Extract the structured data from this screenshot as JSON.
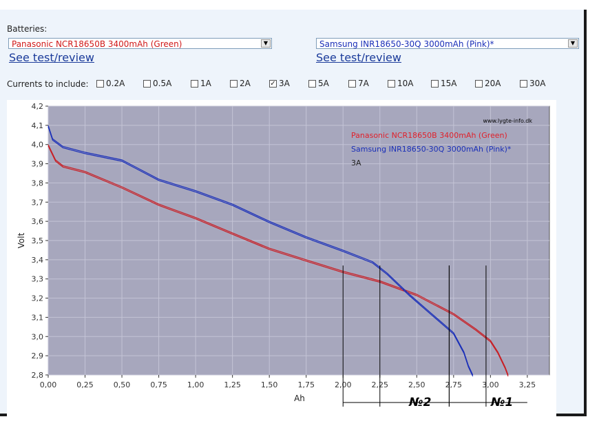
{
  "batteries_label": "Batteries:",
  "battery_left": {
    "selected": "Panasonic NCR18650B 3400mAh (Green)",
    "link": "See test/review"
  },
  "battery_right": {
    "selected": "Samsung INR18650-30Q 3000mAh (Pink)*",
    "link": "See test/review"
  },
  "currents_label": "Currents to include:",
  "currents": [
    {
      "label": "0.2A",
      "checked": false
    },
    {
      "label": "0.5A",
      "checked": false
    },
    {
      "label": "1A",
      "checked": false
    },
    {
      "label": "2A",
      "checked": false
    },
    {
      "label": "3A",
      "checked": true
    },
    {
      "label": "5A",
      "checked": false
    },
    {
      "label": "7A",
      "checked": false
    },
    {
      "label": "10A",
      "checked": false
    },
    {
      "label": "15A",
      "checked": false
    },
    {
      "label": "20A",
      "checked": false
    },
    {
      "label": "30A",
      "checked": false
    }
  ],
  "chart_data": {
    "type": "line",
    "xlabel": "Ah",
    "ylabel": "Volt",
    "xlim": [
      0,
      3.4
    ],
    "ylim": [
      2.8,
      4.2
    ],
    "x_ticks": [
      "0,00",
      "0,25",
      "0,50",
      "0,75",
      "1,00",
      "1,25",
      "1,50",
      "1,75",
      "2,00",
      "2,25",
      "2,50",
      "2,75",
      "3,00",
      "3,25"
    ],
    "y_ticks": [
      "2,8",
      "2,9",
      "3,0",
      "3,1",
      "3,2",
      "3,3",
      "3,4",
      "3,5",
      "3,6",
      "3,7",
      "3,8",
      "3,9",
      "4,0",
      "4,1",
      "4,2"
    ],
    "watermark": "www.lygte-info.dk",
    "legend": [
      {
        "name": "Panasonic NCR18650B 3400mAh (Green)",
        "color": "#e0202a"
      },
      {
        "name": "Samsung INR18650-30Q 3000mAh (Pink)*",
        "color": "#1a2fb8"
      },
      {
        "name": "3A",
        "color": "#222222"
      }
    ],
    "series": [
      {
        "name": "Panasonic NCR18650B 3400mAh (Green)",
        "color": "#c81e24",
        "points": [
          [
            0,
            4.0
          ],
          [
            0.05,
            3.92
          ],
          [
            0.1,
            3.89
          ],
          [
            0.25,
            3.86
          ],
          [
            0.5,
            3.78
          ],
          [
            0.75,
            3.69
          ],
          [
            1.0,
            3.62
          ],
          [
            1.25,
            3.54
          ],
          [
            1.5,
            3.46
          ],
          [
            1.75,
            3.4
          ],
          [
            2.0,
            3.34
          ],
          [
            2.25,
            3.29
          ],
          [
            2.5,
            3.22
          ],
          [
            2.75,
            3.12
          ],
          [
            2.9,
            3.04
          ],
          [
            3.0,
            2.98
          ],
          [
            3.05,
            2.92
          ],
          [
            3.1,
            2.84
          ],
          [
            3.12,
            2.8
          ]
        ]
      },
      {
        "name": "Samsung INR18650-30Q 3000mAh (Pink)*",
        "color": "#1a2fb8",
        "points": [
          [
            0,
            4.1
          ],
          [
            0.03,
            4.03
          ],
          [
            0.1,
            3.99
          ],
          [
            0.25,
            3.96
          ],
          [
            0.5,
            3.92
          ],
          [
            0.6,
            3.88
          ],
          [
            0.75,
            3.82
          ],
          [
            1.0,
            3.76
          ],
          [
            1.25,
            3.69
          ],
          [
            1.5,
            3.6
          ],
          [
            1.75,
            3.52
          ],
          [
            2.0,
            3.45
          ],
          [
            2.2,
            3.39
          ],
          [
            2.3,
            3.33
          ],
          [
            2.45,
            3.22
          ],
          [
            2.6,
            3.12
          ],
          [
            2.75,
            3.02
          ],
          [
            2.82,
            2.92
          ],
          [
            2.85,
            2.85
          ],
          [
            2.88,
            2.8
          ]
        ]
      }
    ],
    "annotations": [
      {
        "text": "№2",
        "x_from": 2.0,
        "x_to": 2.72,
        "markers": [
          2.0,
          2.25,
          2.72
        ]
      },
      {
        "text": "№1",
        "x_from": 2.72,
        "x_to": 3.25,
        "markers": [
          2.72,
          2.97
        ]
      }
    ]
  }
}
